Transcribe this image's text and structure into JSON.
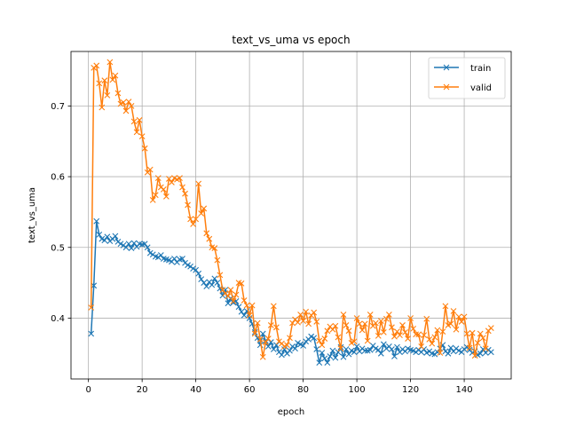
{
  "chart_data": {
    "type": "line",
    "title": "text_vs_uma vs epoch",
    "xlabel": "epoch",
    "ylabel": "text_vs_uma",
    "xlim": [
      -6.5,
      157.5
    ],
    "ylim": [
      0.314,
      0.777
    ],
    "xticks": [
      0,
      20,
      40,
      60,
      80,
      100,
      120,
      140
    ],
    "xtick_labels": [
      "0",
      "20",
      "40",
      "60",
      "80",
      "100",
      "120",
      "140"
    ],
    "yticks": [
      0.4,
      0.5,
      0.6,
      0.7
    ],
    "ytick_labels": [
      "0.4",
      "0.5",
      "0.6",
      "0.7"
    ],
    "grid": true,
    "legend_position": "top-right",
    "marker": "x",
    "series": [
      {
        "name": "train",
        "color": "#1f77b4",
        "x": [
          1,
          2,
          3,
          4,
          5,
          6,
          7,
          8,
          9,
          10,
          11,
          12,
          13,
          14,
          15,
          16,
          17,
          18,
          19,
          20,
          21,
          22,
          23,
          24,
          25,
          26,
          27,
          28,
          29,
          30,
          31,
          32,
          33,
          34,
          35,
          36,
          37,
          38,
          39,
          40,
          41,
          42,
          43,
          44,
          45,
          46,
          47,
          48,
          49,
          50,
          51,
          52,
          53,
          54,
          55,
          56,
          57,
          58,
          59,
          60,
          61,
          62,
          63,
          64,
          65,
          66,
          67,
          68,
          69,
          70,
          71,
          72,
          73,
          74,
          75,
          76,
          77,
          78,
          79,
          80,
          81,
          82,
          83,
          84,
          85,
          86,
          87,
          88,
          89,
          90,
          91,
          92,
          93,
          94,
          95,
          96,
          97,
          98,
          99,
          100,
          101,
          102,
          103,
          104,
          105,
          106,
          107,
          108,
          109,
          110,
          111,
          112,
          113,
          114,
          115,
          116,
          117,
          118,
          119,
          120,
          121,
          122,
          123,
          124,
          125,
          126,
          127,
          128,
          129,
          130,
          131,
          132,
          133,
          134,
          135,
          136,
          137,
          138,
          139,
          140,
          141,
          142,
          143,
          144,
          145,
          146,
          147,
          148,
          149,
          150
        ],
        "y": [
          0.378,
          0.446,
          0.537,
          0.518,
          0.512,
          0.51,
          0.515,
          0.509,
          0.512,
          0.516,
          0.508,
          0.505,
          0.503,
          0.5,
          0.505,
          0.499,
          0.506,
          0.501,
          0.505,
          0.504,
          0.505,
          0.5,
          0.492,
          0.49,
          0.487,
          0.486,
          0.489,
          0.484,
          0.483,
          0.482,
          0.48,
          0.484,
          0.479,
          0.483,
          0.484,
          0.478,
          0.475,
          0.473,
          0.47,
          0.468,
          0.463,
          0.455,
          0.45,
          0.445,
          0.451,
          0.447,
          0.456,
          0.45,
          0.442,
          0.432,
          0.44,
          0.421,
          0.428,
          0.422,
          0.424,
          0.416,
          0.409,
          0.404,
          0.41,
          0.4,
          0.392,
          0.38,
          0.372,
          0.362,
          0.378,
          0.368,
          0.36,
          0.366,
          0.356,
          0.362,
          0.352,
          0.348,
          0.356,
          0.35,
          0.354,
          0.36,
          0.357,
          0.365,
          0.363,
          0.361,
          0.367,
          0.37,
          0.374,
          0.372,
          0.356,
          0.337,
          0.351,
          0.343,
          0.337,
          0.346,
          0.354,
          0.344,
          0.352,
          0.359,
          0.345,
          0.356,
          0.349,
          0.354,
          0.352,
          0.36,
          0.353,
          0.357,
          0.354,
          0.354,
          0.355,
          0.361,
          0.357,
          0.355,
          0.35,
          0.363,
          0.357,
          0.36,
          0.356,
          0.346,
          0.359,
          0.352,
          0.356,
          0.353,
          0.357,
          0.355,
          0.354,
          0.352,
          0.355,
          0.352,
          0.356,
          0.351,
          0.353,
          0.35,
          0.349,
          0.352,
          0.357,
          0.362,
          0.353,
          0.35,
          0.358,
          0.353,
          0.357,
          0.354,
          0.352,
          0.356,
          0.359,
          0.355,
          0.351,
          0.353,
          0.348,
          0.35,
          0.356,
          0.351,
          0.355,
          0.352
        ]
      },
      {
        "name": "valid",
        "color": "#ff7f0e",
        "x": [
          1,
          2,
          3,
          4,
          5,
          6,
          7,
          8,
          9,
          10,
          11,
          12,
          13,
          14,
          15,
          16,
          17,
          18,
          19,
          20,
          21,
          22,
          23,
          24,
          25,
          26,
          27,
          28,
          29,
          30,
          31,
          32,
          33,
          34,
          35,
          36,
          37,
          38,
          39,
          40,
          41,
          42,
          43,
          44,
          45,
          46,
          47,
          48,
          49,
          50,
          51,
          52,
          53,
          54,
          55,
          56,
          57,
          58,
          59,
          60,
          61,
          62,
          63,
          64,
          65,
          66,
          67,
          68,
          69,
          70,
          71,
          72,
          73,
          74,
          75,
          76,
          77,
          78,
          79,
          80,
          81,
          82,
          83,
          84,
          85,
          86,
          87,
          88,
          89,
          90,
          91,
          92,
          93,
          94,
          95,
          96,
          97,
          98,
          99,
          100,
          101,
          102,
          103,
          104,
          105,
          106,
          107,
          108,
          109,
          110,
          111,
          112,
          113,
          114,
          115,
          116,
          117,
          118,
          119,
          120,
          121,
          122,
          123,
          124,
          125,
          126,
          127,
          128,
          129,
          130,
          131,
          132,
          133,
          134,
          135,
          136,
          137,
          138,
          139,
          140,
          141,
          142,
          143,
          144,
          145,
          146,
          147,
          148,
          149,
          150
        ],
        "y": [
          0.415,
          0.754,
          0.757,
          0.732,
          0.698,
          0.736,
          0.715,
          0.762,
          0.737,
          0.743,
          0.718,
          0.703,
          0.705,
          0.693,
          0.706,
          0.7,
          0.678,
          0.663,
          0.68,
          0.657,
          0.64,
          0.606,
          0.61,
          0.567,
          0.574,
          0.598,
          0.585,
          0.582,
          0.572,
          0.597,
          0.592,
          0.598,
          0.596,
          0.598,
          0.585,
          0.576,
          0.56,
          0.54,
          0.533,
          0.54,
          0.59,
          0.548,
          0.555,
          0.52,
          0.512,
          0.5,
          0.499,
          0.482,
          0.461,
          0.44,
          0.435,
          0.431,
          0.44,
          0.424,
          0.433,
          0.45,
          0.449,
          0.425,
          0.418,
          0.404,
          0.418,
          0.378,
          0.393,
          0.37,
          0.345,
          0.366,
          0.371,
          0.39,
          0.417,
          0.387,
          0.367,
          0.364,
          0.36,
          0.362,
          0.372,
          0.393,
          0.398,
          0.394,
          0.405,
          0.396,
          0.409,
          0.392,
          0.404,
          0.408,
          0.395,
          0.368,
          0.362,
          0.371,
          0.382,
          0.388,
          0.384,
          0.389,
          0.373,
          0.357,
          0.405,
          0.39,
          0.382,
          0.365,
          0.367,
          0.4,
          0.392,
          0.383,
          0.392,
          0.368,
          0.405,
          0.389,
          0.393,
          0.375,
          0.396,
          0.38,
          0.399,
          0.405,
          0.387,
          0.374,
          0.381,
          0.376,
          0.39,
          0.38,
          0.371,
          0.4,
          0.385,
          0.377,
          0.377,
          0.36,
          0.376,
          0.399,
          0.37,
          0.364,
          0.373,
          0.383,
          0.351,
          0.381,
          0.417,
          0.39,
          0.392,
          0.41,
          0.384,
          0.402,
          0.395,
          0.402,
          0.378,
          0.358,
          0.379,
          0.347,
          0.365,
          0.378,
          0.372,
          0.357,
          0.382,
          0.386
        ]
      }
    ]
  }
}
